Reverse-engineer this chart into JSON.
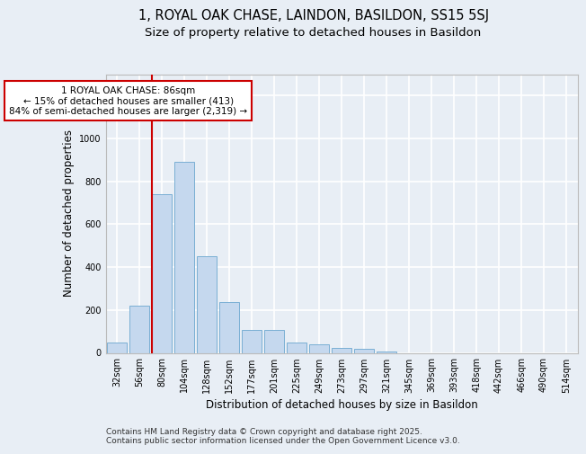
{
  "title_line1": "1, ROYAL OAK CHASE, LAINDON, BASILDON, SS15 5SJ",
  "title_line2": "Size of property relative to detached houses in Basildon",
  "xlabel": "Distribution of detached houses by size in Basildon",
  "ylabel": "Number of detached properties",
  "categories": [
    "32sqm",
    "56sqm",
    "80sqm",
    "104sqm",
    "128sqm",
    "152sqm",
    "177sqm",
    "201sqm",
    "225sqm",
    "249sqm",
    "273sqm",
    "297sqm",
    "321sqm",
    "345sqm",
    "369sqm",
    "393sqm",
    "418sqm",
    "442sqm",
    "466sqm",
    "490sqm",
    "514sqm"
  ],
  "values": [
    50,
    220,
    740,
    890,
    450,
    235,
    105,
    105,
    48,
    38,
    25,
    18,
    8,
    0,
    0,
    0,
    0,
    0,
    0,
    0,
    0
  ],
  "bar_color": "#c5d8ee",
  "bar_edge_color": "#7aafd4",
  "red_line_index": 2,
  "red_line_color": "#cc0000",
  "annotation_text": "1 ROYAL OAK CHASE: 86sqm\n← 15% of detached houses are smaller (413)\n84% of semi-detached houses are larger (2,319) →",
  "annotation_box_facecolor": "#ffffff",
  "annotation_box_edgecolor": "#cc0000",
  "ylim": [
    0,
    1300
  ],
  "yticks": [
    0,
    200,
    400,
    600,
    800,
    1000,
    1200
  ],
  "footer_text": "Contains HM Land Registry data © Crown copyright and database right 2025.\nContains public sector information licensed under the Open Government Licence v3.0.",
  "bg_color": "#e8eef5",
  "plot_bg_color": "#e8eef5",
  "grid_color": "#ffffff",
  "title_fontsize": 10.5,
  "subtitle_fontsize": 9.5,
  "axis_label_fontsize": 8.5,
  "tick_fontsize": 7,
  "annotation_fontsize": 7.5,
  "footer_fontsize": 6.5
}
